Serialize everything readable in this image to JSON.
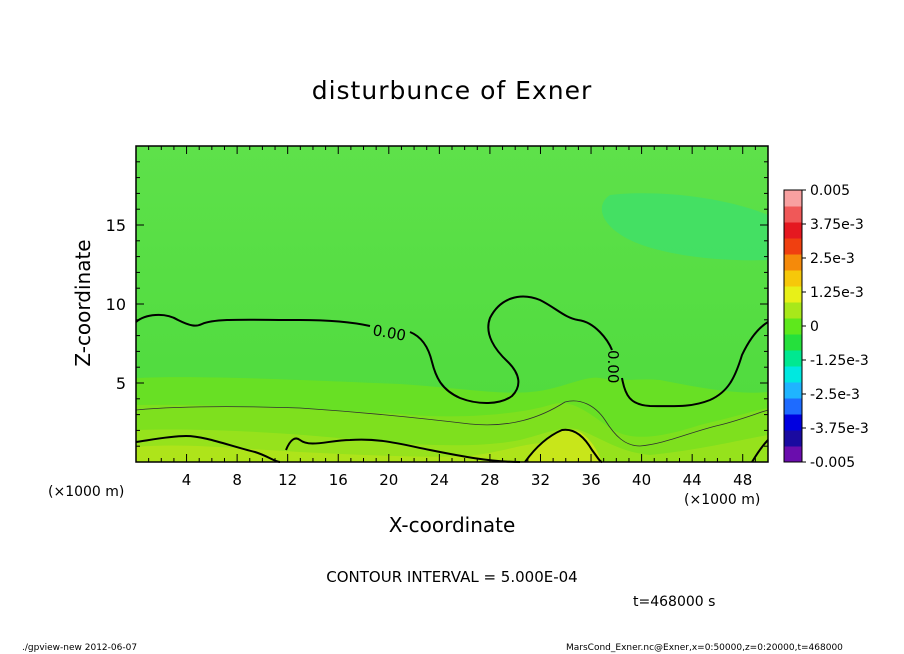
{
  "chart_data": {
    "type": "heatmap",
    "title": "disturbunce of Exner",
    "xlabel": "X-coordinate",
    "ylabel": "Z-coordinate",
    "x_unit_label": "(×1000 m)",
    "x_ticks": [
      "4",
      "8",
      "12",
      "16",
      "20",
      "24",
      "28",
      "32",
      "36",
      "40",
      "44",
      "48"
    ],
    "y_ticks": [
      "5",
      "10",
      "15"
    ],
    "xlim": [
      0,
      50
    ],
    "ylim": [
      0,
      20
    ],
    "colorbar": {
      "labels": [
        "0.005",
        "3.75e-3",
        "2.5e-3",
        "1.25e-3",
        "0",
        "-1.25e-3",
        "-2.5e-3",
        "-3.75e-3",
        "-0.005"
      ],
      "min": -0.005,
      "max": 0.005,
      "colors": [
        "#6a0dad",
        "#1a0aa0",
        "#0000e0",
        "#1e6bff",
        "#1fb4ff",
        "#00e8e0",
        "#00e890",
        "#25e03c",
        "#5ee81c",
        "#a8e81a",
        "#e8f018",
        "#f6c80a",
        "#f58a0a",
        "#f04010",
        "#e51820",
        "#f05858",
        "#f8a0a0"
      ]
    },
    "contour_label": "0.00",
    "contour_interval_text": "CONTOUR INTERVAL = 5.000E-04",
    "time_text": "t=468000 s"
  },
  "footer": {
    "left": "./gpview-new   2012-06-07",
    "right": "MarsCond_Exner.nc@Exner,x=0:50000,z=0:20000,t=468000"
  }
}
